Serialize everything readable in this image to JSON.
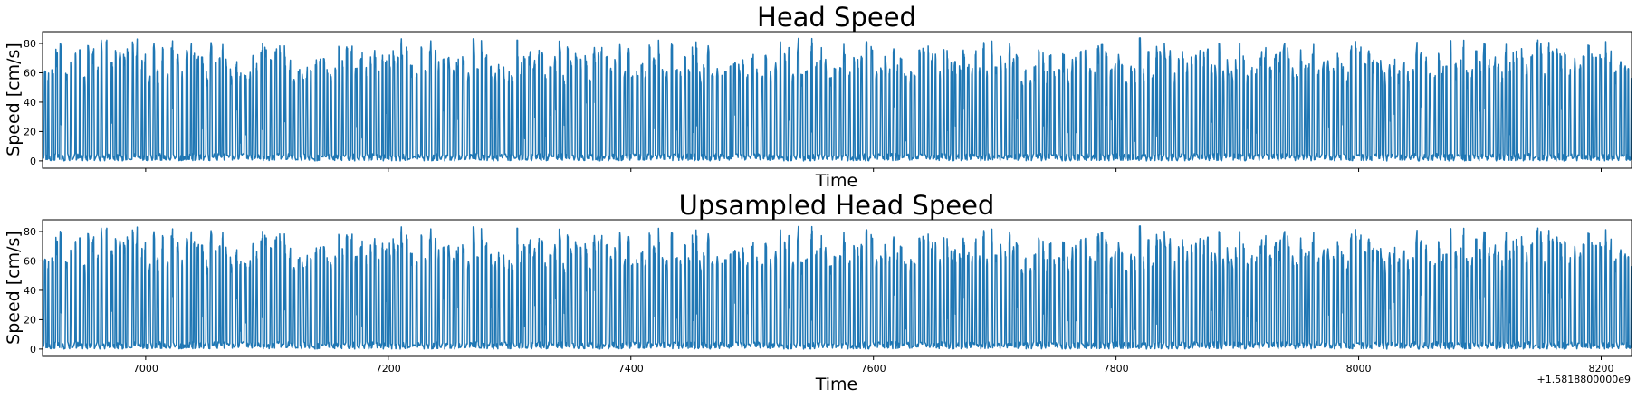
{
  "chart_data": [
    {
      "type": "line",
      "title": "Head Speed",
      "xlabel": "Time",
      "ylabel": "Speed [cm/s]",
      "xlim": [
        6915,
        8225
      ],
      "ylim": [
        -5,
        88
      ],
      "yticks": [
        0,
        20,
        40,
        60,
        80
      ],
      "xticks": [
        7000,
        7200,
        7400,
        7600,
        7800,
        8000,
        8200
      ],
      "xticklabels_visible": false,
      "grid": false,
      "color": "#1f77b4",
      "peak_amplitude_range": [
        60,
        84
      ],
      "baseline_range": [
        0,
        5
      ],
      "num_bursts_approx": 400
    },
    {
      "type": "line",
      "title": "Upsampled Head Speed",
      "xlabel": "Time",
      "ylabel": "Speed [cm/s]",
      "xlim": [
        6915,
        8225
      ],
      "ylim": [
        -5,
        88
      ],
      "yticks": [
        0,
        20,
        40,
        60,
        80
      ],
      "xticks": [
        7000,
        7200,
        7400,
        7600,
        7800,
        8000,
        8200
      ],
      "xticklabels_visible": true,
      "x_offset_label": "+1.5818800000e9",
      "grid": false,
      "color": "#1f77b4",
      "peak_amplitude_range": [
        60,
        84
      ],
      "baseline_range": [
        0,
        5
      ],
      "num_bursts_approx": 400
    }
  ]
}
